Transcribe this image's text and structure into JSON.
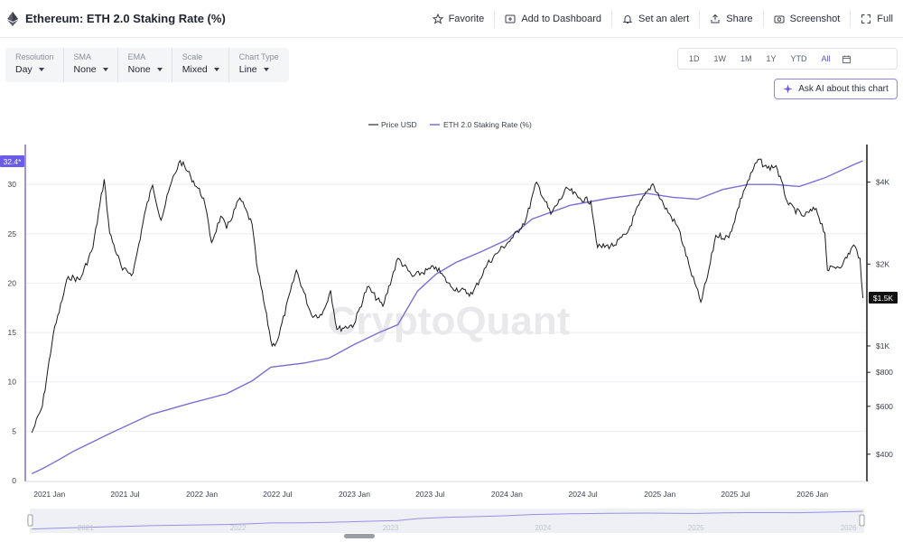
{
  "header": {
    "title": "Ethereum: ETH 2.0 Staking Rate (%)",
    "actions": [
      {
        "label": "Favorite",
        "icon": "star-icon"
      },
      {
        "label": "Add to Dashboard",
        "icon": "dashboard-add-icon"
      },
      {
        "label": "Set an alert",
        "icon": "bell-icon"
      },
      {
        "label": "Share",
        "icon": "share-icon"
      },
      {
        "label": "Screenshot",
        "icon": "camera-icon"
      },
      {
        "label": "Full",
        "icon": "fullscreen-icon"
      }
    ]
  },
  "controls": [
    {
      "label": "Resolution",
      "value": "Day"
    },
    {
      "label": "SMA",
      "value": "None"
    },
    {
      "label": "EMA",
      "value": "None"
    },
    {
      "label": "Scale",
      "value": "Mixed"
    },
    {
      "label": "Chart Type",
      "value": "Line"
    }
  ],
  "ranges": {
    "items": [
      "1D",
      "1W",
      "1M",
      "1Y",
      "YTD",
      "All"
    ],
    "active": "All"
  },
  "ask_ai": "Ask AI about this chart",
  "watermark": "CryptoQuant",
  "colors": {
    "price": "#1a1a1a",
    "staking": "#7b6fd6",
    "accent": "#5b4fe0",
    "marker_bg": "#6a5be8"
  },
  "chart_data": {
    "type": "line",
    "title": "Ethereum: ETH 2.0 Staking Rate (%)",
    "legend": [
      "Price USD",
      "ETH 2.0 Staking Rate (%)"
    ],
    "legend_position": "top-center",
    "x_ticks": [
      "2021 Jan",
      "2021 Jul",
      "2022 Jan",
      "2022 Jul",
      "2023 Jan",
      "2023 Jul",
      "2024 Jan",
      "2024 Jul",
      "2025 Jan",
      "2025 Jul",
      "2026 Jan"
    ],
    "x_range": [
      "2020-11-15",
      "2026-05-05"
    ],
    "left_axis": {
      "ticks": [
        0,
        5,
        10,
        15,
        20,
        25,
        30
      ],
      "range": [
        0,
        32.4
      ],
      "current_label": "32.4*"
    },
    "right_axis": {
      "scale": "log",
      "ticks": [
        400,
        600,
        800,
        1000,
        2000,
        4000
      ],
      "tick_labels": [
        "$400",
        "$600",
        "$800",
        "$1K",
        "$2K",
        "$4K"
      ],
      "range": [
        320,
        5500
      ],
      "current_label": "$1.5K"
    },
    "navigator_years": [
      "2021",
      "2022",
      "2023",
      "2024",
      "2025",
      "2026"
    ],
    "series": [
      {
        "name": "Price USD",
        "axis": "right",
        "points": [
          [
            "2020-11-20",
            480
          ],
          [
            "2020-12-15",
            600
          ],
          [
            "2021-01-10",
            1100
          ],
          [
            "2021-02-15",
            1800
          ],
          [
            "2021-03-15",
            1750
          ],
          [
            "2021-04-15",
            2300
          ],
          [
            "2021-05-12",
            4100
          ],
          [
            "2021-05-25",
            2600
          ],
          [
            "2021-06-25",
            1900
          ],
          [
            "2021-07-20",
            1850
          ],
          [
            "2021-08-20",
            3200
          ],
          [
            "2021-09-05",
            3900
          ],
          [
            "2021-09-25",
            2900
          ],
          [
            "2021-10-20",
            4000
          ],
          [
            "2021-11-10",
            4800
          ],
          [
            "2021-12-05",
            4200
          ],
          [
            "2022-01-05",
            3500
          ],
          [
            "2022-01-24",
            2400
          ],
          [
            "2022-02-15",
            3000
          ],
          [
            "2022-03-01",
            2700
          ],
          [
            "2022-04-02",
            3500
          ],
          [
            "2022-05-01",
            2800
          ],
          [
            "2022-05-12",
            2000
          ],
          [
            "2022-06-18",
            1000
          ],
          [
            "2022-07-01",
            1050
          ],
          [
            "2022-08-15",
            1900
          ],
          [
            "2022-09-20",
            1300
          ],
          [
            "2022-10-15",
            1300
          ],
          [
            "2022-11-05",
            1600
          ],
          [
            "2022-11-20",
            1150
          ],
          [
            "2022-12-31",
            1200
          ],
          [
            "2023-02-01",
            1650
          ],
          [
            "2023-03-10",
            1400
          ],
          [
            "2023-04-15",
            2100
          ],
          [
            "2023-05-20",
            1800
          ],
          [
            "2023-07-15",
            1950
          ],
          [
            "2023-08-20",
            1650
          ],
          [
            "2023-10-10",
            1550
          ],
          [
            "2023-11-15",
            2000
          ],
          [
            "2023-12-15",
            2250
          ],
          [
            "2024-01-15",
            2500
          ],
          [
            "2024-02-15",
            2900
          ],
          [
            "2024-03-12",
            4000
          ],
          [
            "2024-04-15",
            3050
          ],
          [
            "2024-05-25",
            3800
          ],
          [
            "2024-06-20",
            3500
          ],
          [
            "2024-07-20",
            3400
          ],
          [
            "2024-08-05",
            2300
          ],
          [
            "2024-09-15",
            2350
          ],
          [
            "2024-10-15",
            2600
          ],
          [
            "2024-11-12",
            3300
          ],
          [
            "2024-12-15",
            3950
          ],
          [
            "2025-01-10",
            3300
          ],
          [
            "2025-02-15",
            2700
          ],
          [
            "2025-03-15",
            1900
          ],
          [
            "2025-04-09",
            1450
          ],
          [
            "2025-04-25",
            1800
          ],
          [
            "2025-05-15",
            2550
          ],
          [
            "2025-06-15",
            2500
          ],
          [
            "2025-07-20",
            3700
          ],
          [
            "2025-08-24",
            4850
          ],
          [
            "2025-09-15",
            4500
          ],
          [
            "2025-10-06",
            4600
          ],
          [
            "2025-11-05",
            3300
          ],
          [
            "2025-12-10",
            3000
          ],
          [
            "2026-01-10",
            3200
          ],
          [
            "2026-01-31",
            2600
          ],
          [
            "2026-02-06",
            1900
          ],
          [
            "2026-03-15",
            2000
          ],
          [
            "2026-04-10",
            2350
          ],
          [
            "2026-04-25",
            2100
          ],
          [
            "2026-05-02",
            1500
          ]
        ]
      },
      {
        "name": "ETH 2.0 Staking Rate (%)",
        "axis": "left",
        "points": [
          [
            "2020-11-20",
            0.7
          ],
          [
            "2020-12-15",
            1.2
          ],
          [
            "2021-01-15",
            1.9
          ],
          [
            "2021-03-01",
            3.0
          ],
          [
            "2021-06-01",
            4.9
          ],
          [
            "2021-09-01",
            6.7
          ],
          [
            "2021-12-01",
            7.8
          ],
          [
            "2022-03-01",
            8.8
          ],
          [
            "2022-05-01",
            10.1
          ],
          [
            "2022-06-15",
            11.5
          ],
          [
            "2022-09-01",
            11.9
          ],
          [
            "2022-11-01",
            12.4
          ],
          [
            "2023-01-01",
            13.8
          ],
          [
            "2023-03-01",
            15.0
          ],
          [
            "2023-04-15",
            15.8
          ],
          [
            "2023-06-01",
            19.2
          ],
          [
            "2023-07-15",
            20.9
          ],
          [
            "2023-09-01",
            22.1
          ],
          [
            "2023-11-01",
            23.2
          ],
          [
            "2024-01-01",
            24.4
          ],
          [
            "2024-03-01",
            26.5
          ],
          [
            "2024-06-01",
            27.9
          ],
          [
            "2024-09-01",
            28.6
          ],
          [
            "2024-12-01",
            29.1
          ],
          [
            "2025-02-01",
            28.7
          ],
          [
            "2025-04-01",
            28.5
          ],
          [
            "2025-06-01",
            29.5
          ],
          [
            "2025-08-01",
            30.0
          ],
          [
            "2025-10-01",
            30.0
          ],
          [
            "2025-12-01",
            29.8
          ],
          [
            "2026-02-01",
            30.7
          ],
          [
            "2026-04-15",
            32.1
          ],
          [
            "2026-05-02",
            32.4
          ]
        ]
      }
    ]
  }
}
